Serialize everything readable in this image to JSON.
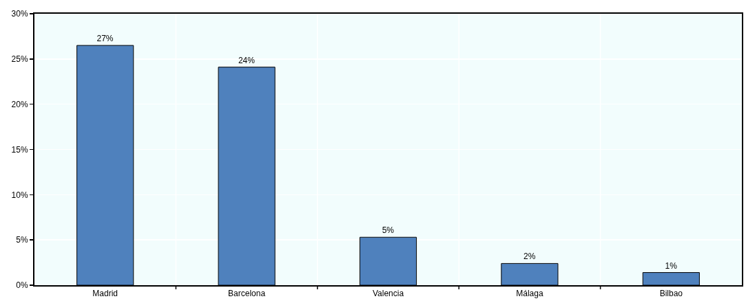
{
  "chart_data": {
    "type": "bar",
    "categories": [
      "Madrid",
      "Barcelona",
      "Valencia",
      "Málaga",
      "Bilbao"
    ],
    "values": [
      26.5,
      24.1,
      5.3,
      2.4,
      1.4
    ],
    "value_labels": [
      "27%",
      "24%",
      "5%",
      "2%",
      "1%"
    ],
    "color": "#4f81bd",
    "ylim": [
      0,
      30
    ],
    "yticks": [
      {
        "value": 0,
        "label": "0%"
      },
      {
        "value": 5,
        "label": "5%"
      },
      {
        "value": 10,
        "label": "10%"
      },
      {
        "value": 15,
        "label": "15%"
      },
      {
        "value": 20,
        "label": "20%"
      },
      {
        "value": 25,
        "label": "25%"
      },
      {
        "value": 30,
        "label": "30%"
      }
    ],
    "grid": true
  }
}
